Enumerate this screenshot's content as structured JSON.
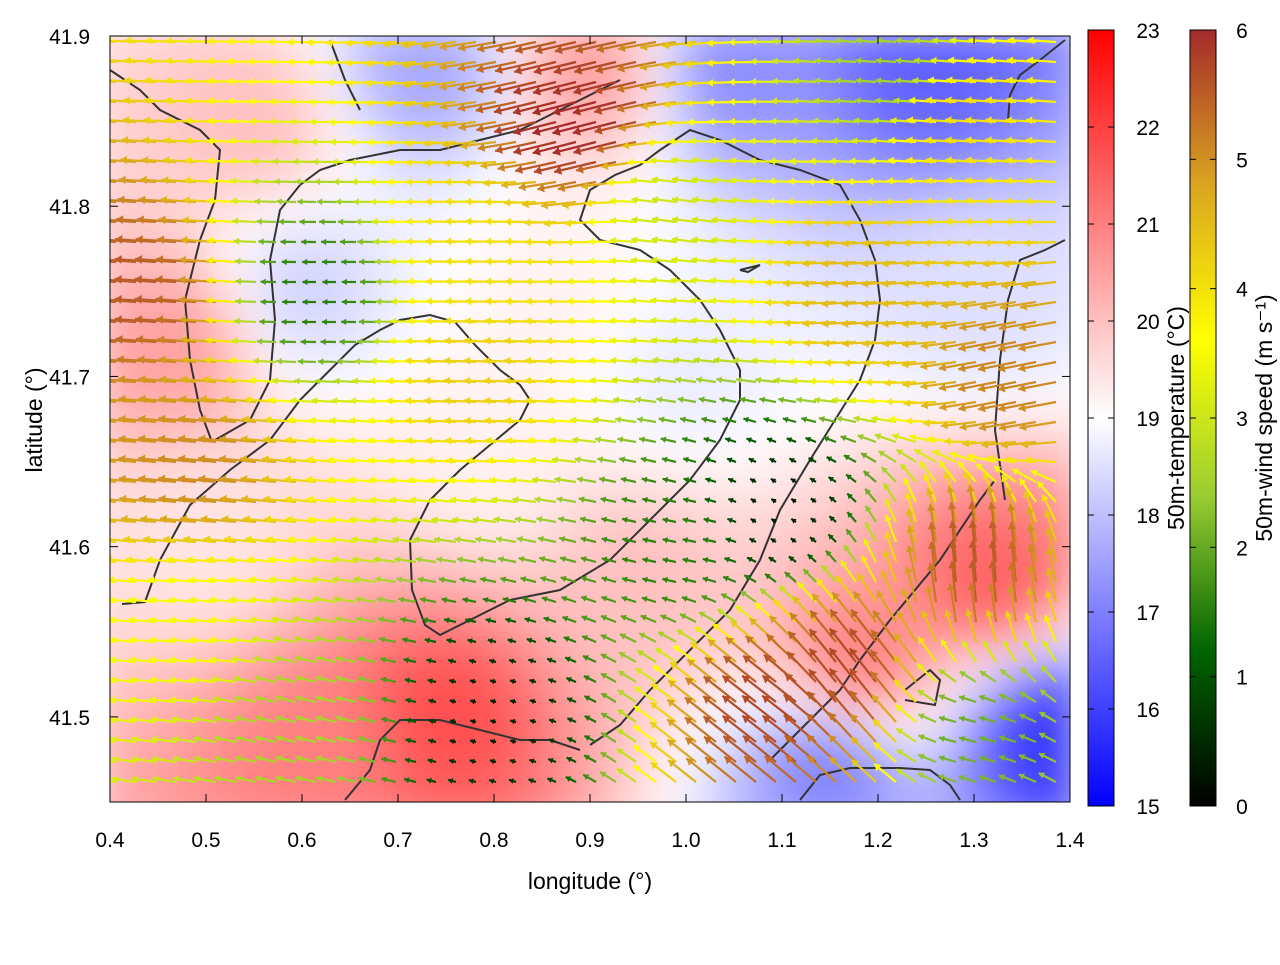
{
  "chart_data": {
    "type": "heatmap",
    "xlabel": "longitude (°)",
    "ylabel": "latitude (°)",
    "xlim": [
      0.4,
      1.4
    ],
    "ylim": [
      41.45,
      41.9
    ],
    "xticks": [
      "0.4",
      "0.5",
      "0.6",
      "0.7",
      "0.8",
      "0.9",
      "1.0",
      "1.1",
      "1.2",
      "1.3",
      "1.4"
    ],
    "xtick_values": [
      0.4,
      0.5,
      0.6,
      0.7,
      0.8,
      0.9,
      1.0,
      1.1,
      1.2,
      1.3,
      1.4
    ],
    "yticks": [
      "41.5",
      "41.6",
      "41.7",
      "41.8",
      "41.9"
    ],
    "ytick_values": [
      41.5,
      41.6,
      41.7,
      41.8,
      41.9
    ],
    "temperature_colorbar": {
      "label": "50m-temperature (°C)",
      "range": [
        15,
        23
      ],
      "ticks": [
        "15",
        "16",
        "17",
        "18",
        "19",
        "20",
        "21",
        "22",
        "23"
      ],
      "tick_values": [
        15,
        16,
        17,
        18,
        19,
        20,
        21,
        22,
        23
      ],
      "colors": [
        "#0000ff",
        "#ffffff",
        "#ff0000"
      ]
    },
    "wind_colorbar": {
      "label": "50m-wind speed (m s⁻¹)",
      "range": [
        0,
        6
      ],
      "ticks": [
        "0",
        "1",
        "2",
        "3",
        "4",
        "5",
        "6"
      ],
      "tick_values": [
        0,
        1,
        2,
        3,
        4,
        5,
        6
      ],
      "colors": [
        "#000000",
        "#006400",
        "#9acd32",
        "#ffff00",
        "#daa520",
        "#a52a2a"
      ]
    },
    "temperature_field": [
      {
        "lon": 0.47,
        "lat": 41.72,
        "t": 20.5
      },
      {
        "lon": 0.55,
        "lat": 41.85,
        "t": 20.0
      },
      {
        "lon": 0.6,
        "lat": 41.75,
        "t": 18.3
      },
      {
        "lon": 0.73,
        "lat": 41.88,
        "t": 17.6
      },
      {
        "lon": 0.9,
        "lat": 41.88,
        "t": 20.5
      },
      {
        "lon": 0.87,
        "lat": 41.75,
        "t": 19.2
      },
      {
        "lon": 1.05,
        "lat": 41.88,
        "t": 17.2
      },
      {
        "lon": 1.25,
        "lat": 41.88,
        "t": 16.5
      },
      {
        "lon": 1.3,
        "lat": 41.75,
        "t": 18.5
      },
      {
        "lon": 1.32,
        "lat": 41.58,
        "t": 21.5
      },
      {
        "lon": 1.18,
        "lat": 41.53,
        "t": 21.0
      },
      {
        "lon": 1.38,
        "lat": 41.49,
        "t": 15.8
      },
      {
        "lon": 1.15,
        "lat": 41.47,
        "t": 17.0
      },
      {
        "lon": 0.75,
        "lat": 41.5,
        "t": 21.8
      },
      {
        "lon": 0.62,
        "lat": 41.48,
        "t": 21.0
      },
      {
        "lon": 0.5,
        "lat": 41.6,
        "t": 19.4
      },
      {
        "lon": 0.8,
        "lat": 41.65,
        "t": 19.2
      },
      {
        "lon": 0.95,
        "lat": 41.58,
        "t": 20.0
      },
      {
        "lon": 1.0,
        "lat": 41.7,
        "t": 18.7
      }
    ],
    "wind_field": [
      {
        "lon": 0.45,
        "lat": 41.75,
        "u": 5.5,
        "v": 0.4
      },
      {
        "lon": 0.5,
        "lat": 41.65,
        "u": 5.0,
        "v": 0.5
      },
      {
        "lon": 0.5,
        "lat": 41.55,
        "u": 3.5,
        "v": 0.3
      },
      {
        "lon": 0.6,
        "lat": 41.5,
        "u": 2.5,
        "v": 0.6
      },
      {
        "lon": 0.62,
        "lat": 41.75,
        "u": 1.5,
        "v": 0.0
      },
      {
        "lon": 0.8,
        "lat": 41.78,
        "u": 4.0,
        "v": 0.1
      },
      {
        "lon": 0.8,
        "lat": 41.7,
        "u": 4.2,
        "v": 0.2
      },
      {
        "lon": 0.8,
        "lat": 41.5,
        "u": 0.4,
        "v": 0.1
      },
      {
        "lon": 0.9,
        "lat": 41.85,
        "u": 5.8,
        "v": -1.5
      },
      {
        "lon": 1.0,
        "lat": 41.8,
        "u": 3.0,
        "v": 0.4
      },
      {
        "lon": 1.0,
        "lat": 41.6,
        "u": 1.5,
        "v": 0.3
      },
      {
        "lon": 1.1,
        "lat": 41.62,
        "u": 0.3,
        "v": 0.2
      },
      {
        "lon": 1.2,
        "lat": 41.75,
        "u": 4.5,
        "v": -0.3
      },
      {
        "lon": 1.22,
        "lat": 41.88,
        "u": 2.5,
        "v": 0.2
      },
      {
        "lon": 1.3,
        "lat": 41.85,
        "u": 4.0,
        "v": 0.3
      },
      {
        "lon": 1.3,
        "lat": 41.58,
        "u": 0.5,
        "v": 5.5
      },
      {
        "lon": 1.18,
        "lat": 41.52,
        "u": 3.5,
        "v": 4.5
      },
      {
        "lon": 1.1,
        "lat": 41.5,
        "u": 4.5,
        "v": 3.5
      },
      {
        "lon": 1.3,
        "lat": 41.49,
        "u": 2.0,
        "v": 0.5
      },
      {
        "lon": 1.35,
        "lat": 41.7,
        "u": 5.0,
        "v": -1.0
      }
    ]
  }
}
